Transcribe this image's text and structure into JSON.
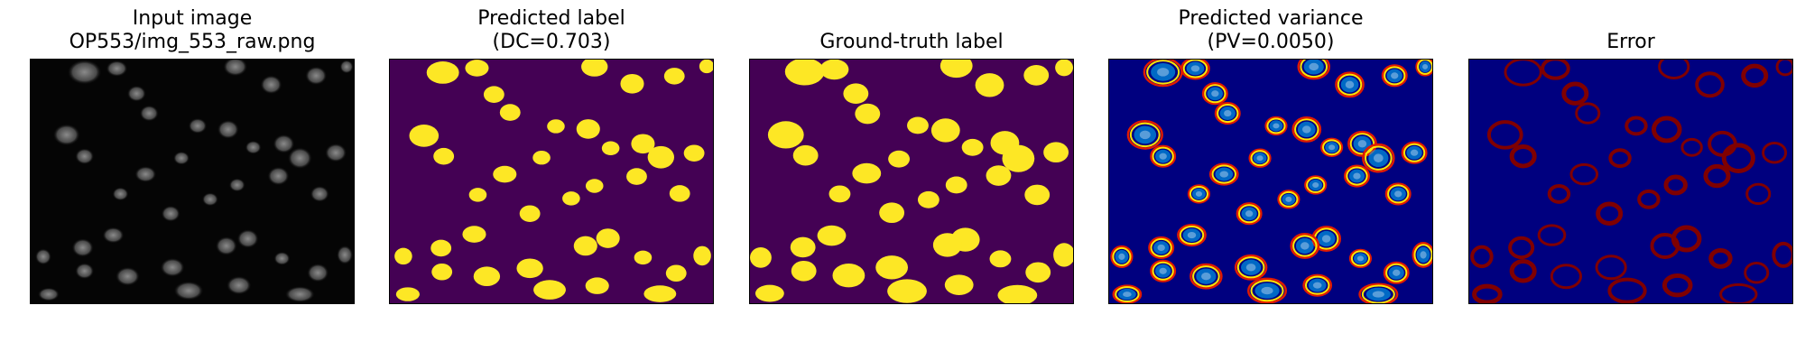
{
  "panels": [
    {
      "id": "input",
      "title_lines": [
        "Input image",
        "OP553/img_553_raw.png"
      ],
      "colormap": "gray"
    },
    {
      "id": "prediction",
      "title_lines": [
        "Predicted label",
        "(DC=0.703)"
      ],
      "colormap": "viridis-binary"
    },
    {
      "id": "ground_truth",
      "title_lines": [
        "Ground-truth label"
      ],
      "colormap": "viridis-binary"
    },
    {
      "id": "variance",
      "title_lines": [
        "Predicted variance",
        "(PV=0.0050)"
      ],
      "colormap": "jet"
    },
    {
      "id": "error",
      "title_lines": [
        "Error"
      ],
      "colormap": "jet-binary"
    }
  ],
  "colors": {
    "input_bg": "#050505",
    "input_cell": "#6a6a6a",
    "viridis_bg": "#440154",
    "viridis_fg": "#fde725",
    "jet_bg": "#00007f",
    "jet_mid": "#00bfff",
    "jet_warm": "#ffe600",
    "jet_hot": "#e01a00",
    "error_ring": "#800000"
  }
}
